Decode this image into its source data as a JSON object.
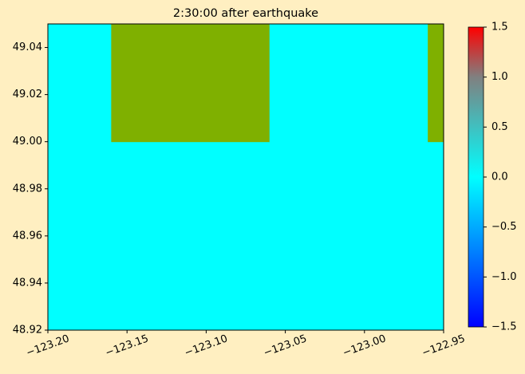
{
  "chart_data": {
    "type": "heatmap",
    "title": "2:30:00 after earthquake",
    "x_edges": [
      -123.2,
      -123.16,
      -123.06,
      -122.96,
      -122.95
    ],
    "y_edges": [
      48.92,
      49.0,
      49.05
    ],
    "values": [
      [
        0,
        0,
        0,
        0
      ],
      [
        0,
        null,
        0,
        null
      ]
    ],
    "mask_color": "#7fb000",
    "xlim": [
      -123.2,
      -122.95
    ],
    "xticks": [
      {
        "value": -123.2,
        "label": "−123.20"
      },
      {
        "value": -123.15,
        "label": "−123.15"
      },
      {
        "value": -123.1,
        "label": "−123.10"
      },
      {
        "value": -123.05,
        "label": "−123.05"
      },
      {
        "value": -123.0,
        "label": "−123.00"
      },
      {
        "value": -122.95,
        "label": "−122.95"
      }
    ],
    "ylim": [
      48.92,
      49.05
    ],
    "yticks": [
      48.92,
      48.94,
      48.96,
      48.98,
      {
        "value": 49.0,
        "label": "49.00"
      },
      49.02,
      49.04
    ],
    "colorbar_lim": [
      -1.5,
      1.5
    ],
    "colorbar_ticks": [
      {
        "value": -1.5,
        "label": "−1.5"
      },
      {
        "value": -1.0,
        "label": "−1.0"
      },
      {
        "value": -0.5,
        "label": "−0.5"
      },
      {
        "value": 0.0,
        "label": "0.0"
      },
      0.5,
      {
        "value": 1.0,
        "label": "1.0"
      },
      1.5
    ],
    "colormap": [
      {
        "value": -1.5,
        "color": "#0000ff"
      },
      {
        "value": 0,
        "color": "#00ffff"
      },
      {
        "value": 1.0,
        "color": "#808080"
      },
      {
        "value": 1.5,
        "color": "#ff0000"
      }
    ]
  }
}
